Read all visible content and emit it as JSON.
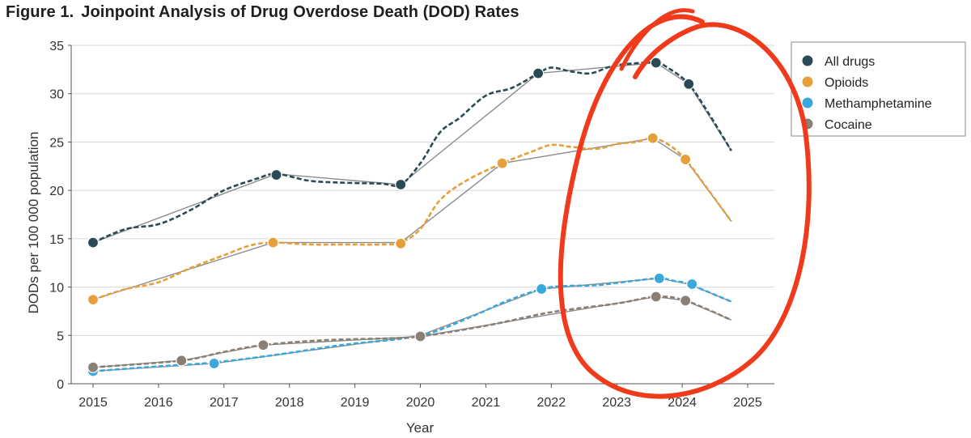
{
  "header": {
    "figure_label": "Figure 1.",
    "title_text": "Joinpoint Analysis of Drug Overdose Death (DOD) Rates"
  },
  "chart_data": {
    "type": "line",
    "title": "Figure 1. Joinpoint Analysis of Drug Overdose Death (DOD) Rates",
    "xlabel": "Year",
    "ylabel": "DODs per 100 000 population",
    "xlim": [
      2014.95,
      2025.25
    ],
    "ylim": [
      0,
      35
    ],
    "x_ticks": [
      2015,
      2016,
      2017,
      2018,
      2019,
      2020,
      2021,
      2022,
      2023,
      2024,
      2025
    ],
    "y_ticks": [
      0,
      5,
      10,
      15,
      20,
      25,
      30,
      35
    ],
    "grid": "horizontal",
    "legend_position": "top-right",
    "fit_line_color": "#8c8c8c",
    "series": [
      {
        "name": "All drugs",
        "color": "#2a4a55",
        "observed": [
          [
            2015.0,
            14.6
          ],
          [
            2015.5,
            16.0
          ],
          [
            2016.0,
            16.5
          ],
          [
            2016.5,
            18.0
          ],
          [
            2017.0,
            20.0
          ],
          [
            2017.5,
            21.2
          ],
          [
            2017.8,
            21.7
          ],
          [
            2018.3,
            21.0
          ],
          [
            2018.8,
            20.8
          ],
          [
            2019.4,
            20.7
          ],
          [
            2019.7,
            20.6
          ],
          [
            2020.0,
            22.8
          ],
          [
            2020.3,
            26.0
          ],
          [
            2020.6,
            27.5
          ],
          [
            2021.0,
            29.8
          ],
          [
            2021.4,
            30.6
          ],
          [
            2021.8,
            32.1
          ],
          [
            2022.0,
            32.7
          ],
          [
            2022.3,
            32.3
          ],
          [
            2022.6,
            32.1
          ],
          [
            2022.9,
            32.8
          ],
          [
            2023.2,
            33.1
          ],
          [
            2023.6,
            33.2
          ],
          [
            2023.8,
            32.6
          ],
          [
            2024.1,
            31.0
          ],
          [
            2024.4,
            28.0
          ],
          [
            2024.75,
            24.1
          ]
        ],
        "fit": [
          [
            2015.0,
            14.6
          ],
          [
            2017.8,
            21.7
          ],
          [
            2019.7,
            20.6
          ],
          [
            2021.8,
            32.1
          ],
          [
            2023.6,
            33.2
          ],
          [
            2024.1,
            31.0
          ],
          [
            2024.75,
            24.1
          ]
        ],
        "joinpoints": [
          [
            2015.0,
            14.6
          ],
          [
            2017.8,
            21.6
          ],
          [
            2019.7,
            20.6
          ],
          [
            2021.8,
            32.1
          ],
          [
            2023.6,
            33.2
          ],
          [
            2024.1,
            31.0
          ]
        ]
      },
      {
        "name": "Opioids",
        "color": "#e5a03c",
        "observed": [
          [
            2015.0,
            8.7
          ],
          [
            2015.5,
            9.8
          ],
          [
            2016.0,
            10.5
          ],
          [
            2016.5,
            12.0
          ],
          [
            2017.0,
            13.3
          ],
          [
            2017.4,
            14.3
          ],
          [
            2017.75,
            14.6
          ],
          [
            2018.3,
            14.4
          ],
          [
            2018.8,
            14.4
          ],
          [
            2019.4,
            14.4
          ],
          [
            2019.7,
            14.6
          ],
          [
            2020.0,
            16.0
          ],
          [
            2020.3,
            19.0
          ],
          [
            2020.7,
            21.0
          ],
          [
            2021.25,
            22.8
          ],
          [
            2021.7,
            24.0
          ],
          [
            2022.0,
            24.7
          ],
          [
            2022.3,
            24.5
          ],
          [
            2022.7,
            24.3
          ],
          [
            2023.0,
            24.8
          ],
          [
            2023.3,
            25.0
          ],
          [
            2023.55,
            25.4
          ],
          [
            2023.8,
            24.7
          ],
          [
            2024.05,
            23.2
          ],
          [
            2024.35,
            20.5
          ],
          [
            2024.75,
            16.8
          ]
        ],
        "fit": [
          [
            2015.0,
            8.7
          ],
          [
            2017.75,
            14.6
          ],
          [
            2019.7,
            14.6
          ],
          [
            2021.25,
            22.8
          ],
          [
            2023.55,
            25.4
          ],
          [
            2024.05,
            23.2
          ],
          [
            2024.75,
            16.8
          ]
        ],
        "joinpoints": [
          [
            2015.0,
            8.7
          ],
          [
            2017.75,
            14.6
          ],
          [
            2019.7,
            14.5
          ],
          [
            2021.25,
            22.8
          ],
          [
            2023.55,
            25.4
          ],
          [
            2024.05,
            23.2
          ]
        ]
      },
      {
        "name": "Methamphetamine",
        "color": "#3aa8dc",
        "observed": [
          [
            2015.0,
            1.3
          ],
          [
            2016.0,
            1.8
          ],
          [
            2016.85,
            2.2
          ],
          [
            2017.8,
            3.0
          ],
          [
            2018.8,
            4.0
          ],
          [
            2020.0,
            5.0
          ],
          [
            2020.8,
            7.0
          ],
          [
            2021.3,
            8.5
          ],
          [
            2021.85,
            9.8
          ],
          [
            2022.2,
            10.1
          ],
          [
            2022.7,
            10.2
          ],
          [
            2023.2,
            10.6
          ],
          [
            2023.65,
            10.9
          ],
          [
            2023.9,
            10.6
          ],
          [
            2024.1,
            10.3
          ],
          [
            2024.75,
            8.5
          ]
        ],
        "fit": [
          [
            2015.0,
            1.3
          ],
          [
            2016.85,
            2.1
          ],
          [
            2020.0,
            5.0
          ],
          [
            2021.85,
            9.8
          ],
          [
            2023.65,
            10.9
          ],
          [
            2024.1,
            10.3
          ],
          [
            2024.75,
            8.5
          ]
        ],
        "joinpoints": [
          [
            2015.0,
            1.3
          ],
          [
            2016.85,
            2.1
          ],
          [
            2021.85,
            9.8
          ],
          [
            2023.65,
            10.9
          ],
          [
            2024.15,
            10.3
          ]
        ]
      },
      {
        "name": "Cocaine",
        "color": "#8a7f74",
        "observed": [
          [
            2015.0,
            1.7
          ],
          [
            2016.35,
            2.4
          ],
          [
            2017.0,
            3.3
          ],
          [
            2017.6,
            4.0
          ],
          [
            2018.5,
            4.5
          ],
          [
            2019.5,
            4.7
          ],
          [
            2020.0,
            4.9
          ],
          [
            2021.0,
            6.0
          ],
          [
            2022.0,
            7.4
          ],
          [
            2023.0,
            8.3
          ],
          [
            2023.6,
            9.0
          ],
          [
            2024.05,
            8.6
          ],
          [
            2024.75,
            6.6
          ]
        ],
        "fit": [
          [
            2015.0,
            1.7
          ],
          [
            2016.35,
            2.4
          ],
          [
            2017.6,
            4.0
          ],
          [
            2020.0,
            4.9
          ],
          [
            2023.6,
            9.0
          ],
          [
            2024.05,
            8.6
          ],
          [
            2024.75,
            6.6
          ]
        ],
        "joinpoints": [
          [
            2015.0,
            1.7
          ],
          [
            2016.35,
            2.4
          ],
          [
            2017.6,
            4.0
          ],
          [
            2020.0,
            4.9
          ],
          [
            2023.6,
            9.0
          ],
          [
            2024.05,
            8.6
          ]
        ]
      }
    ],
    "annotation": {
      "type": "hand-drawn red circle",
      "color": "#f03a1c",
      "target": "2023-2025 decline"
    }
  }
}
